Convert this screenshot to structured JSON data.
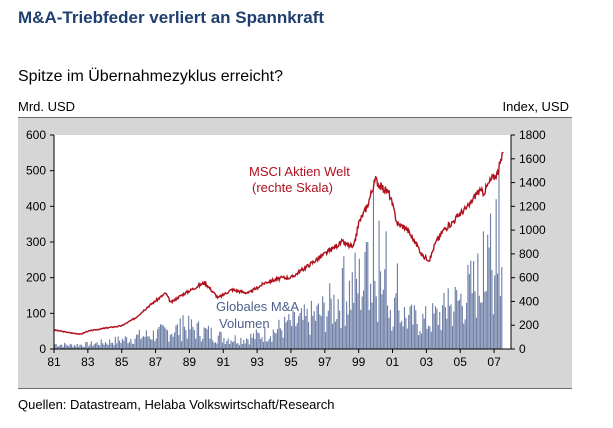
{
  "header": {
    "title": "M&A-Triebfeder verliert an Spannkraft",
    "subtitle": "Spitze im Übernahmezyklus erreicht?",
    "left_unit": "Mrd. USD",
    "right_unit": "Index, USD"
  },
  "footer": {
    "source": "Quellen: Datastream, Helaba Volkswirtschaft/Research"
  },
  "colors": {
    "line": "#b0111e",
    "bars": "#6d7ea6",
    "plot_bg": "#ffffff",
    "panel_bg": "#d6d6d6"
  },
  "chart_data": {
    "type": "bar+line",
    "x_range": [
      1981,
      2008
    ],
    "x_ticks": [
      "81",
      "83",
      "85",
      "87",
      "89",
      "91",
      "93",
      "95",
      "97",
      "99",
      "01",
      "03",
      "05",
      "07"
    ],
    "y_left": {
      "label": "Mrd. USD",
      "range": [
        0,
        600
      ],
      "ticks": [
        0,
        100,
        200,
        300,
        400,
        500,
        600
      ]
    },
    "y_right": {
      "label": "Index, USD",
      "range": [
        0,
        1800
      ],
      "ticks": [
        0,
        200,
        400,
        600,
        800,
        1000,
        1200,
        1400,
        1600,
        1800
      ]
    },
    "annotations": [
      {
        "lines": [
          "MSCI Aktien Welt",
          "(rechte Skala)"
        ],
        "series": "MSCI Aktien Welt"
      },
      {
        "lines": [
          "Globales M&A",
          "Volumen"
        ],
        "series": "Globales M&A Volumen"
      }
    ],
    "series": [
      {
        "name": "Globales M&A Volumen",
        "type": "bar",
        "axis": "left",
        "annual_typical": [
          [
            1981,
            15
          ],
          [
            1982,
            12
          ],
          [
            1983,
            14
          ],
          [
            1984,
            20
          ],
          [
            1985,
            28
          ],
          [
            1986,
            38
          ],
          [
            1987,
            45
          ],
          [
            1988,
            58
          ],
          [
            1989,
            65
          ],
          [
            1990,
            52
          ],
          [
            1991,
            35
          ],
          [
            1992,
            30
          ],
          [
            1993,
            40
          ],
          [
            1994,
            55
          ],
          [
            1995,
            75
          ],
          [
            1996,
            90
          ],
          [
            1997,
            115
          ],
          [
            1998,
            160
          ],
          [
            1999,
            200
          ],
          [
            2000,
            210
          ],
          [
            2001,
            130
          ],
          [
            2002,
            90
          ],
          [
            2003,
            85
          ],
          [
            2004,
            110
          ],
          [
            2005,
            150
          ],
          [
            2006,
            200
          ],
          [
            2007,
            240
          ]
        ],
        "peaks": [
          [
            1988.6,
            95
          ],
          [
            1994.8,
            80
          ],
          [
            1996.9,
            130
          ],
          [
            1998.1,
            260
          ],
          [
            1998.8,
            270
          ],
          [
            1999.5,
            300
          ],
          [
            1999.9,
            440
          ],
          [
            2000.2,
            360
          ],
          [
            2000.6,
            330
          ],
          [
            2001.3,
            240
          ],
          [
            2004.3,
            170
          ],
          [
            2005.5,
            210
          ],
          [
            2006.4,
            330
          ],
          [
            2006.8,
            380
          ],
          [
            2007.1,
            420
          ],
          [
            2007.3,
            500
          ],
          [
            2007.45,
            230
          ]
        ]
      },
      {
        "name": "MSCI Aktien Welt",
        "type": "line",
        "axis": "right",
        "points": [
          [
            1981,
            160
          ],
          [
            1982,
            135
          ],
          [
            1982.6,
            125
          ],
          [
            1983,
            150
          ],
          [
            1984,
            175
          ],
          [
            1985,
            195
          ],
          [
            1985.8,
            260
          ],
          [
            1986.5,
            350
          ],
          [
            1987.6,
            470
          ],
          [
            1987.9,
            390
          ],
          [
            1988.5,
            450
          ],
          [
            1989.9,
            560
          ],
          [
            1990.7,
            430
          ],
          [
            1991.5,
            500
          ],
          [
            1992.5,
            470
          ],
          [
            1993.5,
            560
          ],
          [
            1994.5,
            600
          ],
          [
            1995,
            600
          ],
          [
            1996,
            700
          ],
          [
            1997,
            800
          ],
          [
            1997.6,
            860
          ],
          [
            1998,
            900
          ],
          [
            1998.7,
            850
          ],
          [
            1999,
            1060
          ],
          [
            1999.5,
            1200
          ],
          [
            2000,
            1430
          ],
          [
            2000.2,
            1380
          ],
          [
            2000.8,
            1310
          ],
          [
            2001.3,
            1050
          ],
          [
            2001.8,
            1020
          ],
          [
            2002.5,
            860
          ],
          [
            2002.8,
            780
          ],
          [
            2003.2,
            750
          ],
          [
            2003.5,
            880
          ],
          [
            2004,
            1000
          ],
          [
            2004.5,
            1060
          ],
          [
            2005,
            1140
          ],
          [
            2005.5,
            1200
          ],
          [
            2006,
            1320
          ],
          [
            2006.4,
            1320
          ],
          [
            2006.8,
            1420
          ],
          [
            2007.2,
            1480
          ],
          [
            2007.55,
            1650
          ]
        ]
      }
    ]
  }
}
